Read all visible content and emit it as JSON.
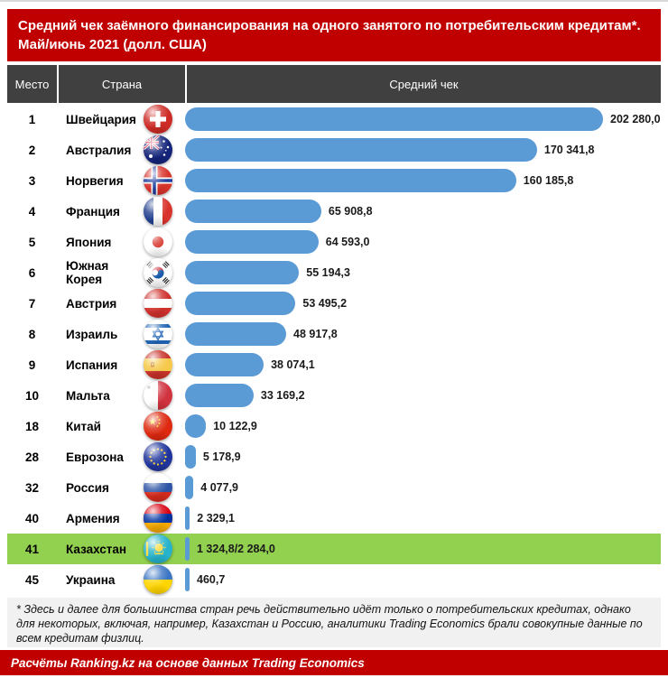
{
  "title": {
    "line1": "Средний чек заёмного финансирования на одного занятого по потребительским кредитам*.",
    "line2": "Май/июнь 2021 (долл. США)"
  },
  "table_headers": {
    "rank": "Место",
    "country": "Страна",
    "value": "Средний чек"
  },
  "chart_data": {
    "type": "bar",
    "orientation": "horizontal",
    "title": "Средний чек заёмного финансирования на одного занятого по потребительским кредитам*. Май/июнь 2021 (долл. США)",
    "xlim": [
      0,
      202280
    ],
    "grid": false,
    "legend": "none",
    "max_value": 202280,
    "categories": [
      "Швейцария",
      "Австралия",
      "Норвегия",
      "Франция",
      "Япония",
      "Южная Корея",
      "Австрия",
      "Израиль",
      "Испания",
      "Мальта",
      "Китай",
      "Еврозона",
      "Россия",
      "Армения",
      "Казахстан",
      "Украина"
    ],
    "values": [
      202280.0,
      170341.8,
      160185.8,
      65908.8,
      64593.0,
      55194.3,
      53495.2,
      48917.8,
      38074.1,
      33169.2,
      10122.9,
      5178.9,
      4077.9,
      2329.1,
      1324.8,
      460.7
    ],
    "rows": [
      {
        "rank": "1",
        "country": "Швейцария",
        "flag": "switzerland",
        "value_numeric": 202280.0,
        "value_label": "202 280,0",
        "highlight": false
      },
      {
        "rank": "2",
        "country": "Австралия",
        "flag": "australia",
        "value_numeric": 170341.8,
        "value_label": "170 341,8",
        "highlight": false
      },
      {
        "rank": "3",
        "country": "Норвегия",
        "flag": "norway",
        "value_numeric": 160185.8,
        "value_label": "160 185,8",
        "highlight": false
      },
      {
        "rank": "4",
        "country": "Франция",
        "flag": "france",
        "value_numeric": 65908.8,
        "value_label": "65 908,8",
        "highlight": false
      },
      {
        "rank": "5",
        "country": "Япония",
        "flag": "japan",
        "value_numeric": 64593.0,
        "value_label": "64 593,0",
        "highlight": false
      },
      {
        "rank": "6",
        "country": "Южная Корея",
        "flag": "south-korea",
        "value_numeric": 55194.3,
        "value_label": "55 194,3",
        "highlight": false
      },
      {
        "rank": "7",
        "country": "Австрия",
        "flag": "austria",
        "value_numeric": 53495.2,
        "value_label": "53 495,2",
        "highlight": false
      },
      {
        "rank": "8",
        "country": "Израиль",
        "flag": "israel",
        "value_numeric": 48917.8,
        "value_label": "48 917,8",
        "highlight": false
      },
      {
        "rank": "9",
        "country": "Испания",
        "flag": "spain",
        "value_numeric": 38074.1,
        "value_label": "38 074,1",
        "highlight": false
      },
      {
        "rank": "10",
        "country": "Мальта",
        "flag": "malta",
        "value_numeric": 33169.2,
        "value_label": "33 169,2",
        "highlight": false
      },
      {
        "rank": "18",
        "country": "Китай",
        "flag": "china",
        "value_numeric": 10122.9,
        "value_label": "10 122,9",
        "highlight": false
      },
      {
        "rank": "28",
        "country": "Еврозона",
        "flag": "eurozone",
        "value_numeric": 5178.9,
        "value_label": "5 178,9",
        "highlight": false
      },
      {
        "rank": "32",
        "country": "Россия",
        "flag": "russia",
        "value_numeric": 4077.9,
        "value_label": "4 077,9",
        "highlight": false
      },
      {
        "rank": "40",
        "country": "Армения",
        "flag": "armenia",
        "value_numeric": 2329.1,
        "value_label": "2 329,1",
        "highlight": false
      },
      {
        "rank": "41",
        "country": "Казахстан",
        "flag": "kazakhstan",
        "value_numeric": 1324.8,
        "value_label": "1 324,8/2 284,0",
        "highlight": true
      },
      {
        "rank": "45",
        "country": "Украина",
        "flag": "ukraine",
        "value_numeric": 460.7,
        "value_label": "460,7",
        "highlight": false
      }
    ]
  },
  "footnote": "* Здесь и далее для большинства стран речь действительно идёт только о потребительских кредитах, однако для некоторых, включая, например, Казахстан и Россию, аналитики Trading Economics брали совокупные данные по всем кредитам физлиц.",
  "source": "Расчёты Ranking.kz на основе данных Trading Economics",
  "colors": {
    "header_bg": "#C00000",
    "table_header_bg": "#404040",
    "bar": "#5B9BD5",
    "highlight": "#92D050",
    "footnote_bg": "#F1F1F1"
  }
}
